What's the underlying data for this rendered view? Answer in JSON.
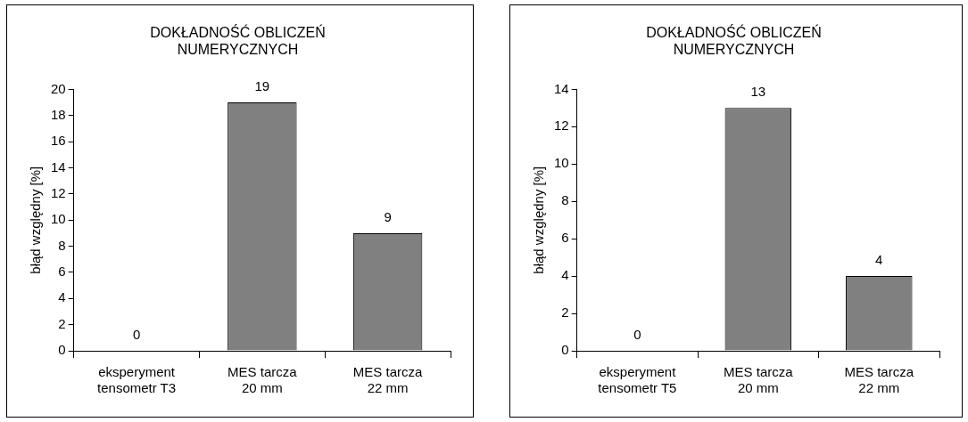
{
  "chart_data": [
    {
      "type": "bar",
      "title": "DOKŁADNOŚĆ OBLICZEŃ NUMERYCZNYCH",
      "ylabel": "błąd względny [%]",
      "categories": [
        "eksperyment tensometr T3",
        "MES tarcza 20 mm",
        "MES tarcza 22 mm"
      ],
      "values": [
        0,
        19,
        9
      ],
      "color": "#808080",
      "ylim": [
        0,
        20
      ],
      "yticks": [
        0,
        2,
        4,
        6,
        8,
        10,
        12,
        14,
        16,
        18,
        20
      ],
      "grid": false,
      "legend": false,
      "data_labels": true
    },
    {
      "type": "bar",
      "title": "DOKŁADNOŚĆ OBLICZEŃ NUMERYCZNYCH",
      "ylabel": "błąd względny [%]",
      "categories": [
        "eksperyment tensometr T5",
        "MES tarcza 20 mm",
        "MES tarcza 22 mm"
      ],
      "values": [
        0,
        13,
        4
      ],
      "color": "#808080",
      "ylim": [
        0,
        14
      ],
      "yticks": [
        0,
        2,
        4,
        6,
        8,
        10,
        12,
        14
      ],
      "grid": false,
      "legend": false,
      "data_labels": true
    }
  ]
}
